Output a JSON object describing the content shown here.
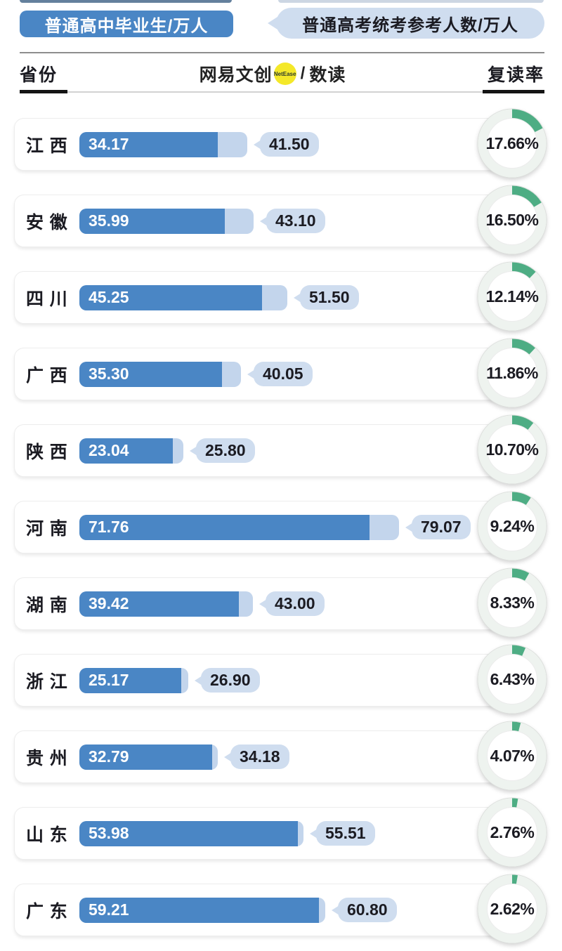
{
  "legend": {
    "graduates_label": "普通高中毕业生/万人",
    "exam_label": "普通高考统考参考人数/万人"
  },
  "header": {
    "province_label": "省份",
    "rate_label": "复读率",
    "logo_brand": "网易文创",
    "logo_badge": "NetEase",
    "logo_slash": "/",
    "logo_sub": "数读"
  },
  "colors": {
    "blue": "#4a86c5",
    "light_blue": "#c3d5ec",
    "pill": "#cfddef",
    "green": "#4ead84",
    "ring": "#eef3ef",
    "yellow": "#f4e829",
    "ink": "#1b1b22"
  },
  "chart_data": {
    "type": "bar",
    "orientation": "horizontal",
    "categories": [
      "江西",
      "安徽",
      "四川",
      "广西",
      "陕西",
      "河南",
      "湖南",
      "浙江",
      "贵州",
      "山东",
      "广东"
    ],
    "series": [
      {
        "name": "普通高中毕业生/万人",
        "values": [
          34.17,
          35.99,
          45.25,
          35.3,
          23.04,
          71.76,
          39.42,
          25.17,
          32.79,
          53.98,
          59.21
        ]
      },
      {
        "name": "普通高考统考参考人数/万人",
        "values": [
          41.5,
          43.1,
          51.5,
          40.05,
          25.8,
          79.07,
          43.0,
          26.9,
          34.18,
          55.51,
          60.8
        ]
      },
      {
        "name": "复读率",
        "unit": "%",
        "type": "donut",
        "values": [
          17.66,
          16.5,
          12.14,
          11.86,
          10.7,
          9.24,
          8.33,
          6.43,
          4.07,
          2.76,
          2.62
        ]
      }
    ],
    "xlabel": "",
    "ylabel": "",
    "xlim": [
      0,
      79.07
    ],
    "grid": false,
    "legend_position": "top"
  }
}
